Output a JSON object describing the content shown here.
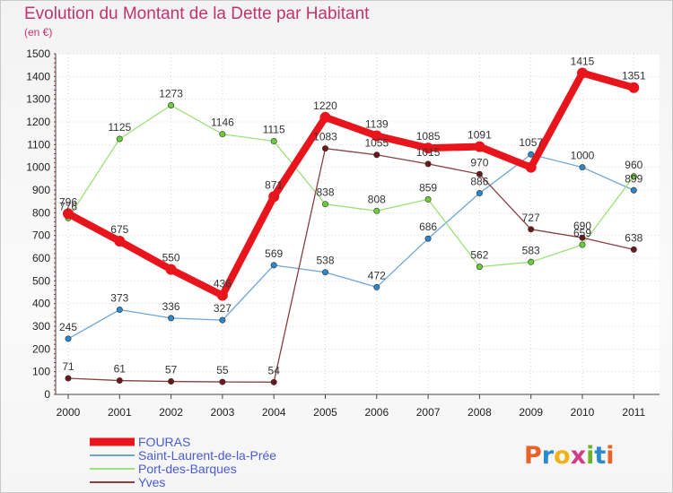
{
  "header": {
    "title": "Evolution du Montant de la Dette par Habitant",
    "subtitle": "(en €)"
  },
  "logo": {
    "text": "Proxiti",
    "letters": [
      "P",
      "r",
      "o",
      "x",
      "i",
      "t",
      "i"
    ],
    "colors": [
      "#e8632a",
      "#2a8ad0",
      "#f0b21a",
      "#d23a8a",
      "#6fb22c",
      "#2a8ad0",
      "#e8632a"
    ]
  },
  "chart_data": {
    "type": "line",
    "title": "Evolution du Montant de la Dette par Habitant",
    "subtitle": "(en €)",
    "x": [
      "2000",
      "2001",
      "2002",
      "2003",
      "2004",
      "2005",
      "2006",
      "2007",
      "2008",
      "2009",
      "2010",
      "2011"
    ],
    "ylim": [
      0,
      1500
    ],
    "yticks": [
      0,
      100,
      200,
      300,
      400,
      500,
      600,
      700,
      800,
      900,
      1000,
      1100,
      1200,
      1300,
      1400,
      1500
    ],
    "grid": true,
    "legend_position": "bottom-left",
    "series": [
      {
        "name": "FOURAS",
        "color": "#e8161c",
        "marker": "#e8161c",
        "width": 8,
        "values": [
          796,
          675,
          550,
          436,
          871,
          1220,
          1139,
          1085,
          1091,
          1000,
          1415,
          1351
        ],
        "labels": [
          "796",
          "675",
          "550",
          "436",
          "871",
          "1220",
          "1139",
          "1085",
          "1091",
          "",
          "1415",
          "1351"
        ]
      },
      {
        "name": "Saint-Laurent-de-la-Prée",
        "color": "#6fa6d6",
        "marker": "#2e86c9",
        "width": 1.3,
        "values": [
          245,
          373,
          336,
          327,
          569,
          538,
          472,
          686,
          886,
          1057,
          1000,
          899
        ],
        "labels": [
          "245",
          "373",
          "336",
          "327",
          "569",
          "538",
          "472",
          "686",
          "886",
          "1057",
          "1000",
          "899"
        ]
      },
      {
        "name": "Port-des-Barques",
        "color": "#9ee07a",
        "marker": "#6ccc3a",
        "width": 1.3,
        "values": [
          776,
          1125,
          1273,
          1146,
          1115,
          838,
          808,
          859,
          562,
          583,
          659,
          960
        ],
        "labels": [
          "776",
          "1125",
          "1273",
          "1146",
          "1115",
          "838",
          "808",
          "859",
          "562",
          "583",
          "659",
          "960"
        ]
      },
      {
        "name": "Yves",
        "color": "#8a4040",
        "marker": "#6a1818",
        "width": 1.3,
        "values": [
          71,
          61,
          57,
          55,
          54,
          1083,
          1055,
          1015,
          970,
          727,
          690,
          638
        ],
        "labels": [
          "71",
          "61",
          "57",
          "55",
          "54",
          "1083",
          "1055",
          "1015",
          "970",
          "727",
          "690",
          "638"
        ]
      }
    ]
  }
}
